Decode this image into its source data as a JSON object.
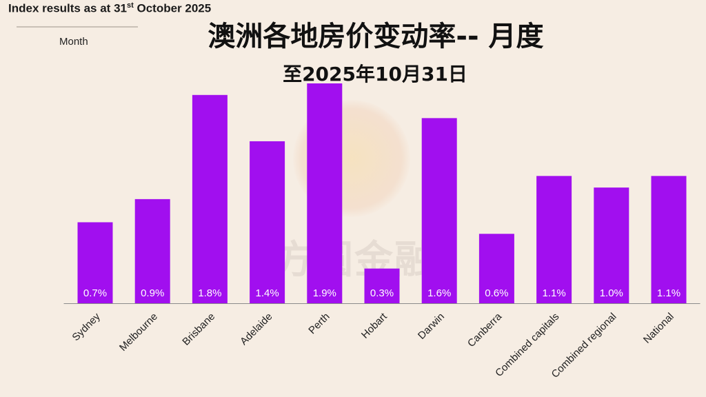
{
  "header": {
    "prefix": "Index results as at 31",
    "suffix_sup": "st",
    "tail": " October 2025",
    "period": "Month"
  },
  "chart_data": {
    "type": "bar",
    "title": "澳洲各地房价变动率-- 月度",
    "subtitle": "至2025年10月31日",
    "xlabel": "",
    "ylabel": "",
    "categories": [
      "Sydney",
      "Melbourne",
      "Brisbane",
      "Adelaide",
      "Perth",
      "Hobart",
      "Darwin",
      "Canberra",
      "Combined capitals",
      "Combined regional",
      "National"
    ],
    "values": [
      0.7,
      0.9,
      1.8,
      1.4,
      1.9,
      0.3,
      1.6,
      0.6,
      1.1,
      1.0,
      1.1
    ],
    "value_labels": [
      "0.7%",
      "0.9%",
      "1.8%",
      "1.4%",
      "1.9%",
      "0.3%",
      "1.6%",
      "0.6%",
      "1.1%",
      "1.0%",
      "1.1%"
    ],
    "ylim": [
      0,
      1.9
    ],
    "bar_color": "#a10fef",
    "grid": false
  },
  "watermark": {
    "text": "方圆金融"
  }
}
